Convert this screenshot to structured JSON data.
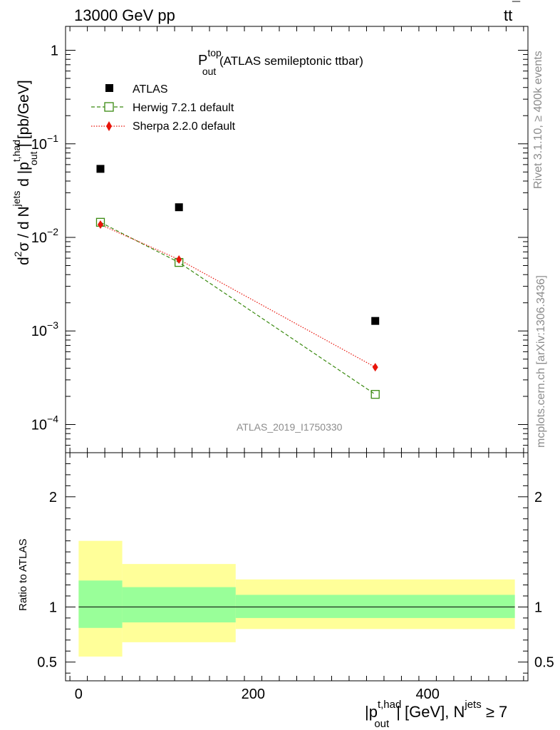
{
  "header": {
    "left": "13000 GeV pp",
    "right_main": "tt",
    "right_overbar": "¯"
  },
  "side": {
    "rivet": "Rivet 3.1.10, ≥ 400k events",
    "mcplots": "mcplots.cern.ch [arXiv:1306.3436]"
  },
  "plot_title": {
    "main": "P",
    "sup": "top",
    "sub": "out",
    "rest": " (ATLAS semileptonic ttbar)"
  },
  "analysis_id": "ATLAS_2019_I1750330",
  "y_label": {
    "p1": "d",
    "p1sup": "2",
    "p2": "σ / d N",
    "p2sup": "jets",
    "p3": " d |p",
    "p3sup": "t,had",
    "p3sub": "out",
    "p4": "| [pb/GeV]"
  },
  "ratio_label": "Ratio to ATLAS",
  "x_label": {
    "p1": "|p",
    "p1sup": "t,had",
    "p1sub": "out",
    "p2": "| [GeV], N",
    "p2sup": "jets",
    "p3": " ≥ 7"
  },
  "legend": {
    "placement": "top-left",
    "entries": [
      "ATLAS",
      "Herwig 7.2.1 default",
      "Sherpa 2.2.0 default"
    ]
  },
  "colors": {
    "atlas": "#000000",
    "herwig": "#3a8a10",
    "sherpa": "#e8140a",
    "band_inner": "#99ff99",
    "band_outer": "#ffff99"
  },
  "chart_data": {
    "type": "scatter",
    "x_scale": "linear",
    "y_scale": "log",
    "xlim": [
      -15,
      515
    ],
    "ylim": [
      5e-05,
      1.8
    ],
    "x_ticks": [
      {
        "value": 0,
        "label": "0"
      },
      {
        "value": 200,
        "label": "200"
      },
      {
        "value": 400,
        "label": "400"
      }
    ],
    "y_ticks": [
      {
        "value": 1,
        "base": "1",
        "exp": ""
      },
      {
        "value": 0.1,
        "base": "10",
        "exp": "−1"
      },
      {
        "value": 0.01,
        "base": "10",
        "exp": "−2"
      },
      {
        "value": 0.001,
        "base": "10",
        "exp": "−3"
      },
      {
        "value": 0.0001,
        "base": "10",
        "exp": "−4"
      }
    ],
    "bins": [
      [
        0,
        50
      ],
      [
        50,
        180
      ],
      [
        180,
        500
      ]
    ],
    "series": [
      {
        "name": "ATLAS",
        "x": [
          25,
          115,
          340
        ],
        "y": [
          0.054,
          0.021,
          0.00128
        ],
        "marker": "square"
      },
      {
        "name": "Herwig 7.2.1 default",
        "x": [
          25,
          115,
          340
        ],
        "y": [
          0.0145,
          0.0054,
          0.00021
        ],
        "marker": "open-square",
        "line": "dashed"
      },
      {
        "name": "Sherpa 2.2.0 default",
        "x": [
          25,
          115,
          340
        ],
        "y": [
          0.0137,
          0.0058,
          0.00041
        ],
        "marker": "diamond",
        "line": "dotted"
      }
    ],
    "ratio": {
      "ylim": [
        0.33,
        2.4
      ],
      "y_ticks": [
        {
          "value": 0.5,
          "label": "0.5"
        },
        {
          "value": 1,
          "label": "1"
        },
        {
          "value": 2,
          "label": "2"
        }
      ],
      "inner_band": [
        {
          "x0": 0,
          "x1": 50,
          "lo": 0.81,
          "hi": 1.24
        },
        {
          "x0": 50,
          "x1": 180,
          "lo": 0.86,
          "hi": 1.18
        },
        {
          "x0": 180,
          "x1": 500,
          "lo": 0.9,
          "hi": 1.11
        }
      ],
      "outer_band": [
        {
          "x0": 0,
          "x1": 50,
          "lo": 0.55,
          "hi": 1.6
        },
        {
          "x0": 50,
          "x1": 180,
          "lo": 0.68,
          "hi": 1.39
        },
        {
          "x0": 180,
          "x1": 500,
          "lo": 0.8,
          "hi": 1.25
        }
      ]
    }
  }
}
